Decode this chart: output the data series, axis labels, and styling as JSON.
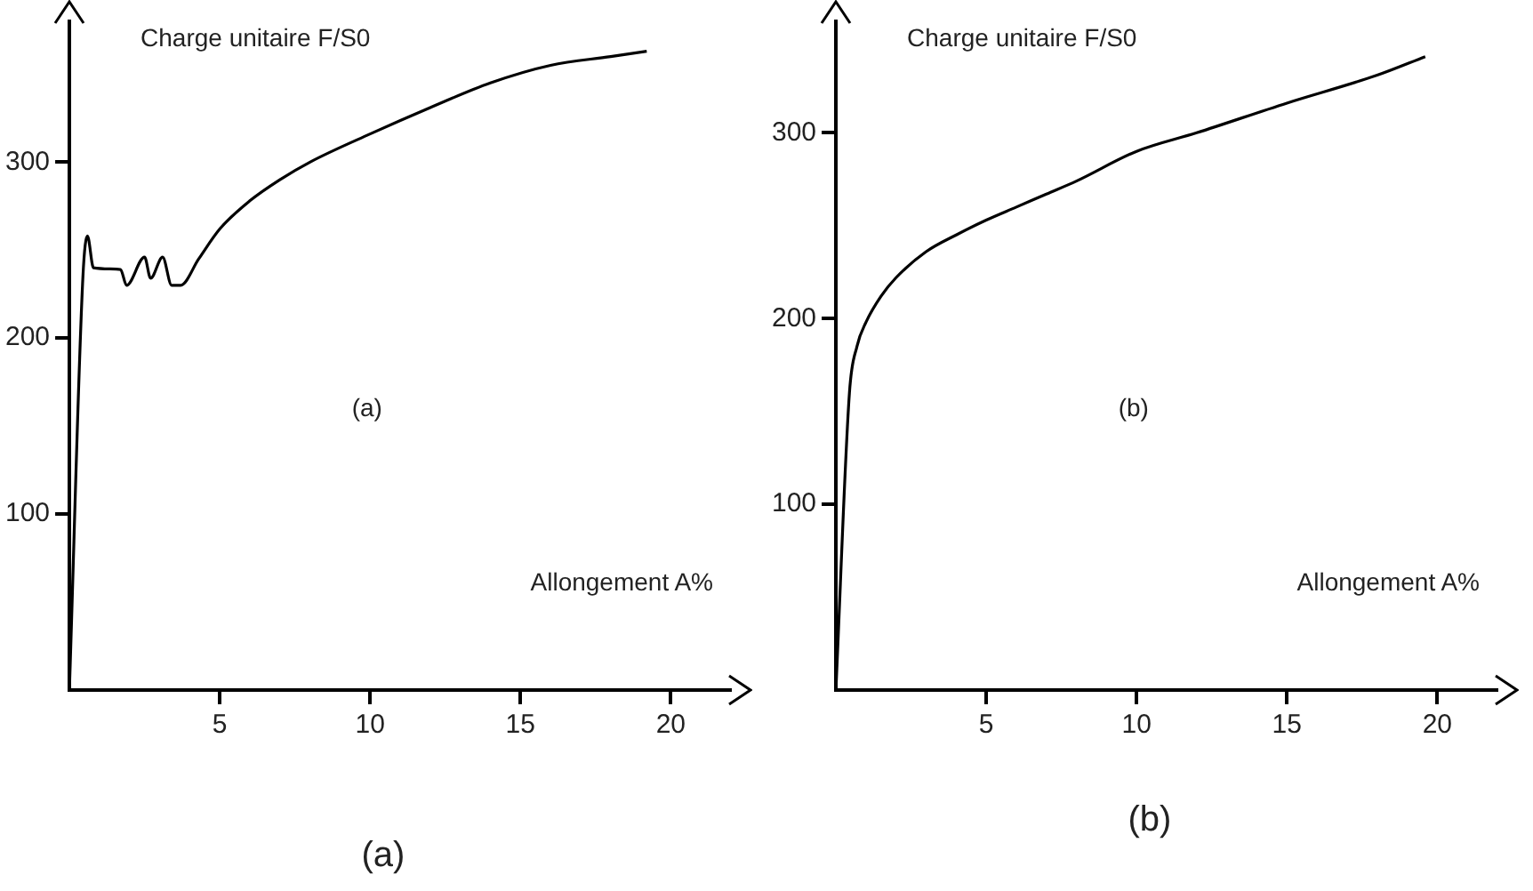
{
  "chart_data": [
    {
      "type": "line",
      "title": "(a)",
      "ylabel": "Charge unitaire F/S0",
      "xlabel": "Allongement A%",
      "annotations": [
        "(a)"
      ],
      "x": [
        0,
        0.45,
        0.6,
        0.8,
        1.7,
        1.9,
        2.5,
        2.7,
        3.1,
        3.4,
        3.7,
        4.3,
        5,
        6,
        7,
        8,
        10,
        12,
        14,
        16,
        18,
        19.2
      ],
      "series": [
        {
          "color": "#000000",
          "values": [
            0,
            235,
            258,
            240,
            239,
            230,
            246,
            234,
            246,
            230,
            230,
            245,
            262,
            278,
            290,
            300,
            316,
            331,
            345,
            355,
            360,
            363
          ]
        }
      ],
      "xlim": [
        0,
        22
      ],
      "xticks": [
        5,
        10,
        15,
        20
      ],
      "ylim": [
        0,
        380
      ],
      "yticks": [
        100,
        200,
        300
      ],
      "grid": false,
      "legend": false,
      "marker": "none",
      "line_style": "solid"
    },
    {
      "type": "line",
      "title": "(b)",
      "ylabel": "Charge unitaire F/S0",
      "xlabel": "Allongement A%",
      "annotations": [
        "(b)"
      ],
      "x": [
        0,
        0.45,
        0.7,
        1,
        1.5,
        2,
        3,
        4,
        5,
        6,
        7,
        8,
        10,
        12,
        15,
        18,
        19.6
      ],
      "series": [
        {
          "color": "#000000",
          "values": [
            0,
            160,
            185,
            198,
            212,
            222,
            236,
            245,
            253,
            260,
            267,
            274,
            290,
            300,
            316,
            331,
            341
          ]
        }
      ],
      "xlim": [
        0,
        22
      ],
      "xticks": [
        5,
        10,
        15,
        20
      ],
      "ylim": [
        0,
        360
      ],
      "yticks": [
        100,
        200,
        300
      ],
      "grid": false,
      "legend": false,
      "marker": "none",
      "line_style": "solid"
    }
  ]
}
